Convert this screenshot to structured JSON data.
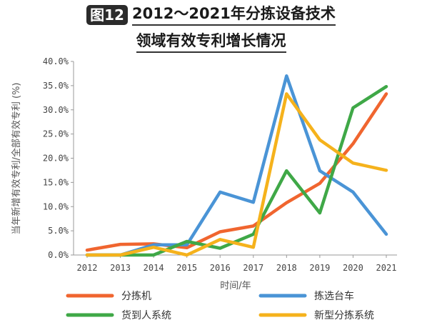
{
  "figure": {
    "badge": "图12",
    "title_line1": "2012～2021年分拣设备技术",
    "title_line2": "领域有效专利增长情况"
  },
  "chart_data": {
    "type": "line",
    "x": [
      "2012",
      "2013",
      "2014",
      "2015",
      "2016",
      "2017",
      "2018",
      "2019",
      "2020",
      "2021"
    ],
    "xlabel": "时间/年",
    "ylabel": "当年新增有效专利/全部有效专利 (%)",
    "ylim": [
      0,
      40
    ],
    "yticks": [
      "0.0%",
      "5.0%",
      "10.0%",
      "15.0%",
      "20.0%",
      "25.0%",
      "30.0%",
      "35.0%",
      "40.0%"
    ],
    "grid": false,
    "legend_position": "bottom",
    "series": [
      {
        "name": "分拣机",
        "color": "#f0652f",
        "values": [
          1.0,
          2.2,
          2.3,
          1.5,
          4.8,
          6.0,
          10.8,
          14.8,
          23.0,
          33.3
        ]
      },
      {
        "name": "拣选台车",
        "color": "#4a94d6",
        "values": [
          0.0,
          0.0,
          2.1,
          2.1,
          13.0,
          10.9,
          37.0,
          17.4,
          13.0,
          4.3
        ]
      },
      {
        "name": "货到人系统",
        "color": "#3fa847",
        "values": [
          0.0,
          0.0,
          0.0,
          2.8,
          1.4,
          4.3,
          17.4,
          8.7,
          30.4,
          34.8
        ]
      },
      {
        "name": "新型分拣系统",
        "color": "#f5b21c",
        "values": [
          0.0,
          0.0,
          1.6,
          0.0,
          3.2,
          1.6,
          33.3,
          23.8,
          19.0,
          17.5
        ]
      }
    ]
  }
}
